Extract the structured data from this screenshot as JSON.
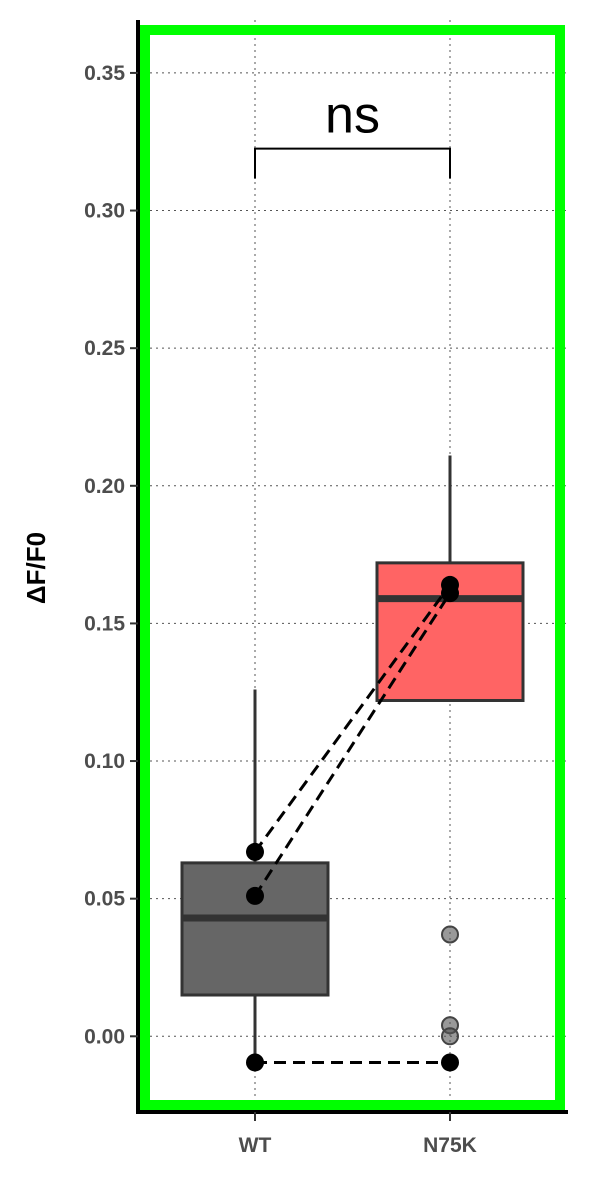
{
  "chart_data": {
    "type": "box",
    "ylabel": "ΔF/F0",
    "xlabel": "",
    "ylim": [
      -0.028,
      0.366
    ],
    "yticks": [
      0.0,
      0.05,
      0.1,
      0.15,
      0.2,
      0.25,
      0.3,
      0.35
    ],
    "ytick_labels": [
      "0.00",
      "0.05",
      "0.10",
      "0.15",
      "0.20",
      "0.25",
      "0.30",
      "0.35"
    ],
    "categories": [
      "WT",
      "N75K"
    ],
    "grid": "dotted",
    "boxes": [
      {
        "name": "WT",
        "whisker_low": -0.0095,
        "q1": 0.015,
        "median": 0.043,
        "q3": 0.063,
        "whisker_high": 0.126,
        "fill": "#666666",
        "outliers": []
      },
      {
        "name": "N75K",
        "whisker_low": 0.122,
        "q1": 0.122,
        "median": 0.159,
        "q3": 0.172,
        "whisker_high": 0.211,
        "fill": "#ff6464",
        "outliers": [
          0.037,
          0.004,
          0.0
        ]
      }
    ],
    "paired_points": [
      {
        "WT": 0.067,
        "N75K": 0.164
      },
      {
        "WT": 0.051,
        "N75K": 0.161
      },
      {
        "WT": -0.0095,
        "N75K": -0.0095
      }
    ],
    "significance": {
      "from": "WT",
      "to": "N75K",
      "label": "ns",
      "y": 0.3225
    },
    "highlight_border_color": "#00ff00"
  }
}
